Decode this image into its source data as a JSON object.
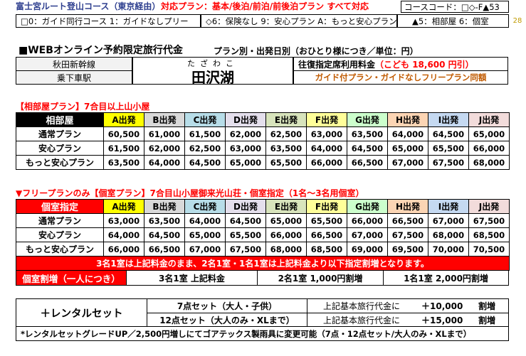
{
  "header": {
    "route_title": "富士宮ルート登山コース（東京経由）",
    "plan_support": "対応プラン：基本/後泊/前泊/前後泊プラン すべて対応",
    "course_code": "コースコード：□◇-F▲53",
    "guide_options": "□0：ガイド同行コース 1：ガイドなしプリー",
    "insurance_options": "◇6：保険なし 9：安心プラン A：もっと安心プラン",
    "room_options": "▲5：相部屋 6：個室",
    "page_number": "28"
  },
  "fare_section": {
    "title": "■WEBオンライン予約限定旅行代金",
    "subtitle": "プラン別・出発日別（おひとり様につき／単位：円）",
    "line_name": "秋田新幹線",
    "boarding_label": "乗下車駅",
    "station_reading": "たざわこ",
    "station_name": "田沢湖",
    "reserved_fare_label": "往復指定席利用料金",
    "reserved_fare_value": "（こども 18,600 円引）",
    "guide_note": "ガイド付プラン・ガイドなしフリープラン同額"
  },
  "shared_room": {
    "title": "【相部屋プラン】7合目以上山小屋",
    "corner_label": "相部屋",
    "columns": [
      "A出発",
      "B出発",
      "C出発",
      "D出発",
      "E出発",
      "F出発",
      "G出発",
      "H出発",
      "I出発",
      "J出発"
    ],
    "rows": [
      {
        "label": "通常プラン",
        "values": [
          "60,500",
          "61,000",
          "61,500",
          "62,000",
          "62,500",
          "63,000",
          "63,500",
          "64,000",
          "64,500",
          "65,000"
        ]
      },
      {
        "label": "安心プラン",
        "values": [
          "61,500",
          "62,000",
          "62,500",
          "63,000",
          "63,500",
          "64,000",
          "64,500",
          "65,000",
          "65,500",
          "66,000"
        ]
      },
      {
        "label": "もっと安心プラン",
        "values": [
          "63,500",
          "64,000",
          "64,500",
          "65,000",
          "65,500",
          "66,000",
          "66,500",
          "67,000",
          "67,500",
          "68,000"
        ]
      }
    ]
  },
  "private_room": {
    "title": "▼フリープランのみ【個室プラン】7合目山小屋御来光山荘・個室指定（1名～3名用個室）",
    "corner_label": "個室指定",
    "columns": [
      "A出発",
      "B出発",
      "C出発",
      "D出発",
      "E出発",
      "F出発",
      "G出発",
      "H出発",
      "I出発",
      "J出発"
    ],
    "rows": [
      {
        "label": "通常プラン",
        "values": [
          "63,000",
          "63,500",
          "64,000",
          "64,500",
          "65,000",
          "65,500",
          "66,000",
          "66,500",
          "67,000",
          "67,500"
        ]
      },
      {
        "label": "安心プラン",
        "values": [
          "64,000",
          "64,500",
          "65,000",
          "65,500",
          "66,000",
          "66,500",
          "67,000",
          "67,500",
          "68,000",
          "68,500"
        ]
      },
      {
        "label": "もっと安心プラン",
        "values": [
          "66,000",
          "66,500",
          "67,000",
          "67,500",
          "68,000",
          "68,500",
          "69,000",
          "69,500",
          "70,000",
          "70,500"
        ]
      }
    ],
    "note": "3名1室は上記料金のまま、2名1室・1名1室は上記料金より以下指定割増となります。",
    "surcharge_label": "個室割増（一人につき）",
    "surcharges": [
      "3名1室 上記料金",
      "2名1室 1,000円割増",
      "1名1室 2,000円割増"
    ]
  },
  "rental": {
    "title": "＋レンタルセット",
    "items": [
      {
        "name": "7点セット（大人・子供）",
        "desc": "上記基本旅行代金に",
        "amount": "＋10,000",
        "unit": "割増"
      },
      {
        "name": "12点セット（大人のみ・XLまで）",
        "desc": "上記基本旅行代金に",
        "amount": "＋15,000",
        "unit": "割増"
      }
    ],
    "footnote": "*レンタルセットグレードUP／2,500円増しにてゴアテックス製雨具に変更可能（7点・12点セット/大人のみ・XLまで）"
  },
  "colors": {
    "title_blue": "#2e3f8f",
    "accent_red": "#ff0000",
    "orange": "#c05a00",
    "col_A": "#ffff00",
    "col_B": "#d9d9d9",
    "col_C": "#b7dde8",
    "col_D": "#e4dfec",
    "col_E": "#d8e4bc",
    "col_F": "#ffff99",
    "col_G": "#ccffcc",
    "col_H": "#fcd5b4",
    "col_I": "#c5d9f1",
    "col_J": "#f2dcdb"
  }
}
